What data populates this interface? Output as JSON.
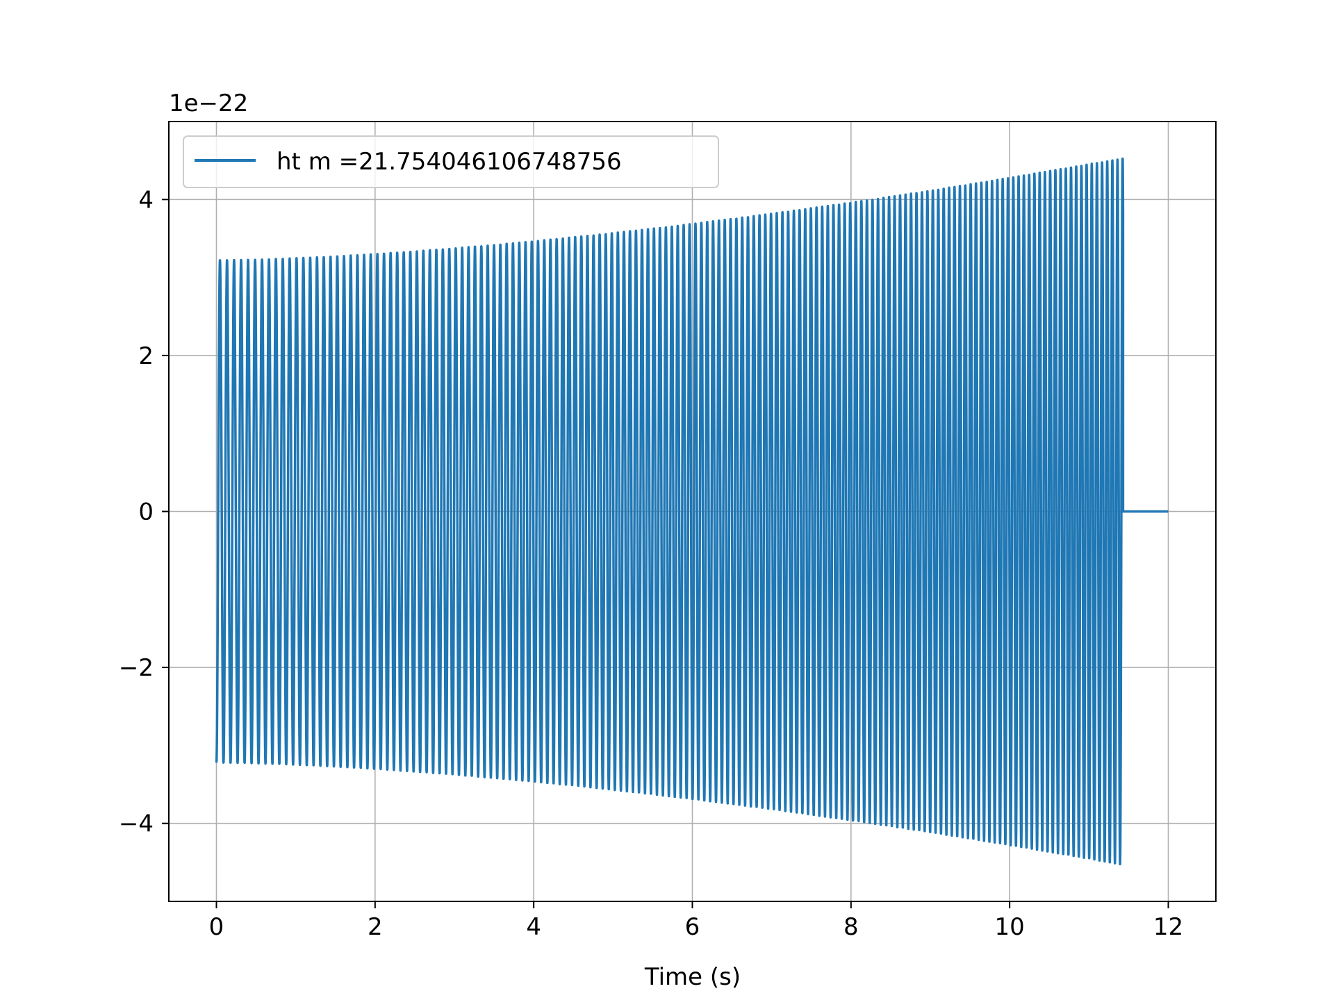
{
  "chart_data": {
    "type": "line",
    "title": "",
    "xlabel": "Time (s)",
    "ylabel": "",
    "y_offset_label": "1e−22",
    "xlim": [
      -0.6,
      12.6
    ],
    "ylim": [
      -5.0,
      5.0
    ],
    "x_ticks": [
      0,
      2,
      4,
      6,
      8,
      10,
      12
    ],
    "x_tick_labels": [
      "0",
      "2",
      "4",
      "6",
      "8",
      "10",
      "12"
    ],
    "y_ticks": [
      -4,
      -2,
      0,
      2,
      4
    ],
    "y_tick_labels": [
      "−4",
      "−2",
      "0",
      "2",
      "4"
    ],
    "grid": true,
    "legend_position": "upper-left",
    "series": [
      {
        "name": "ht m =21.754046106748756",
        "color": "#1f77b4",
        "signal": "chirp",
        "t_start": 0.0,
        "t_end": 11.43,
        "t_flat_end": 12.0,
        "start_amplitude": 3.22,
        "end_amplitude": 4.53,
        "start_frequency_hz": 11.2,
        "end_frequency_hz": 15.5,
        "after_end_value": 0.0
      }
    ]
  }
}
